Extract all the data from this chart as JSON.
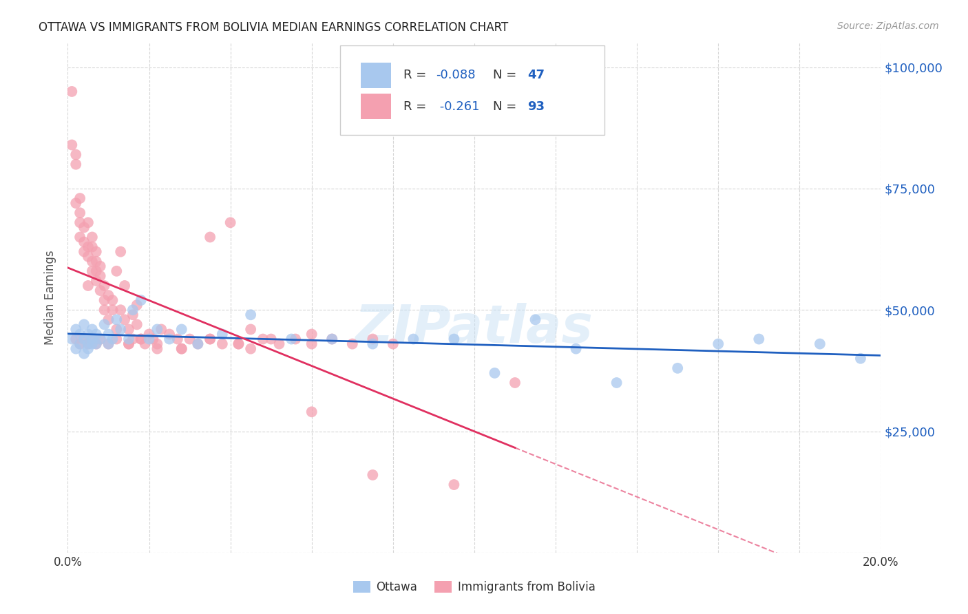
{
  "title": "OTTAWA VS IMMIGRANTS FROM BOLIVIA MEDIAN EARNINGS CORRELATION CHART",
  "source": "Source: ZipAtlas.com",
  "ylabel": "Median Earnings",
  "xlim": [
    0,
    0.2
  ],
  "ylim": [
    0,
    105000
  ],
  "yticks": [
    0,
    25000,
    50000,
    75000,
    100000
  ],
  "ytick_labels": [
    "",
    "$25,000",
    "$50,000",
    "$75,000",
    "$100,000"
  ],
  "background_color": "#ffffff",
  "grid_color": "#cccccc",
  "watermark": "ZIPatlas",
  "legend_r1_val": "-0.088",
  "legend_n1_val": "47",
  "legend_r2_val": "-0.261",
  "legend_n2_val": "93",
  "ottawa_color": "#A8C8EE",
  "bolivia_color": "#F4A0B0",
  "ottawa_line_color": "#2060C0",
  "bolivia_line_color": "#E03060",
  "label_color": "#333333",
  "value_color": "#2060C0",
  "ottawa_seed_x": [
    0.001,
    0.002,
    0.002,
    0.003,
    0.003,
    0.004,
    0.004,
    0.004,
    0.005,
    0.005,
    0.005,
    0.006,
    0.006,
    0.006,
    0.007,
    0.007,
    0.008,
    0.009,
    0.01,
    0.01,
    0.011,
    0.012,
    0.013,
    0.015,
    0.016,
    0.018,
    0.02,
    0.022,
    0.025,
    0.028,
    0.032,
    0.038,
    0.045,
    0.055,
    0.065,
    0.075,
    0.085,
    0.095,
    0.105,
    0.115,
    0.125,
    0.135,
    0.15,
    0.16,
    0.17,
    0.185,
    0.195
  ],
  "ottawa_seed_y": [
    44000,
    42000,
    46000,
    43000,
    45000,
    41000,
    44000,
    47000,
    43000,
    45000,
    42000,
    44000,
    46000,
    43000,
    45000,
    43000,
    44000,
    47000,
    43000,
    45000,
    44000,
    48000,
    46000,
    44000,
    50000,
    52000,
    44000,
    46000,
    44000,
    46000,
    43000,
    45000,
    49000,
    44000,
    44000,
    43000,
    44000,
    44000,
    37000,
    48000,
    42000,
    35000,
    38000,
    43000,
    44000,
    43000,
    40000
  ],
  "bolivia_seed_x": [
    0.001,
    0.001,
    0.002,
    0.002,
    0.002,
    0.003,
    0.003,
    0.003,
    0.003,
    0.004,
    0.004,
    0.004,
    0.005,
    0.005,
    0.005,
    0.005,
    0.006,
    0.006,
    0.006,
    0.006,
    0.007,
    0.007,
    0.007,
    0.007,
    0.008,
    0.008,
    0.008,
    0.009,
    0.009,
    0.009,
    0.01,
    0.01,
    0.011,
    0.011,
    0.012,
    0.012,
    0.013,
    0.013,
    0.014,
    0.014,
    0.015,
    0.015,
    0.016,
    0.016,
    0.017,
    0.017,
    0.018,
    0.019,
    0.02,
    0.021,
    0.022,
    0.023,
    0.025,
    0.027,
    0.028,
    0.03,
    0.032,
    0.035,
    0.038,
    0.04,
    0.042,
    0.045,
    0.048,
    0.052,
    0.056,
    0.06,
    0.065,
    0.07,
    0.075,
    0.08,
    0.002,
    0.003,
    0.004,
    0.005,
    0.006,
    0.007,
    0.008,
    0.01,
    0.012,
    0.015,
    0.018,
    0.022,
    0.028,
    0.035,
    0.042,
    0.05,
    0.06,
    0.035,
    0.045,
    0.11,
    0.06,
    0.075,
    0.095
  ],
  "bolivia_seed_y": [
    95000,
    84000,
    82000,
    80000,
    72000,
    73000,
    70000,
    68000,
    65000,
    67000,
    64000,
    62000,
    63000,
    61000,
    68000,
    55000,
    65000,
    63000,
    60000,
    58000,
    62000,
    58000,
    56000,
    60000,
    59000,
    57000,
    54000,
    55000,
    52000,
    50000,
    53000,
    48000,
    52000,
    50000,
    58000,
    46000,
    50000,
    62000,
    48000,
    55000,
    46000,
    43000,
    49000,
    44000,
    51000,
    47000,
    44000,
    43000,
    45000,
    44000,
    42000,
    46000,
    45000,
    44000,
    42000,
    44000,
    43000,
    65000,
    43000,
    68000,
    43000,
    46000,
    44000,
    43000,
    44000,
    45000,
    44000,
    43000,
    44000,
    43000,
    44000,
    43000,
    44000,
    43000,
    44000,
    43000,
    44000,
    43000,
    44000,
    43000,
    44000,
    43000,
    42000,
    44000,
    43000,
    44000,
    43000,
    44000,
    42000,
    35000,
    29000,
    16000,
    14000
  ]
}
